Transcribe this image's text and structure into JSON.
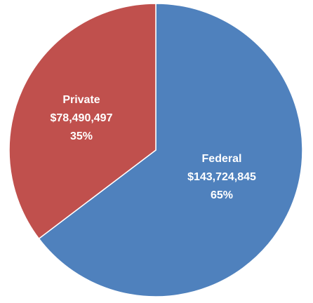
{
  "chart_data": {
    "type": "pie",
    "title": "",
    "slices": [
      {
        "label": "Federal",
        "value": 143724845,
        "value_text": "$143,724,845",
        "percent_text": "65%",
        "color": "#4F81BD"
      },
      {
        "label": "Private",
        "value": 78490497,
        "value_text": "$78,490,497",
        "percent_text": "35%",
        "color": "#C0504D"
      }
    ],
    "start_angle": "12 o'clock",
    "direction": "clockwise",
    "legend": "none",
    "labels_position": "inside"
  }
}
